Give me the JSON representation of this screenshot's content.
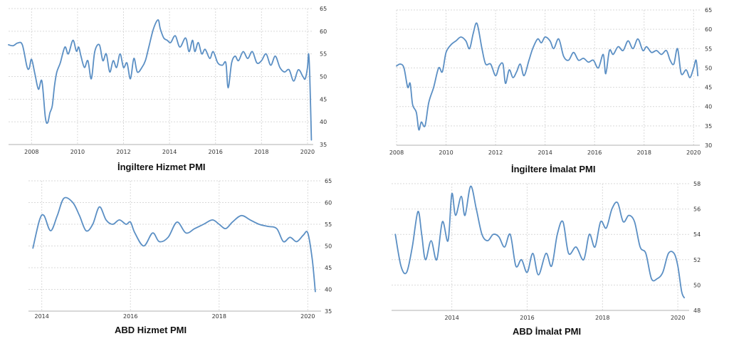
{
  "chart_data": [
    {
      "type": "line",
      "title": "İngiltere Hizmet PMI",
      "xlabel": "",
      "ylabel": "",
      "xlim": [
        2007,
        2020.25
      ],
      "ylim": [
        35,
        65
      ],
      "x_ticks": [
        "2008",
        "2010",
        "2012",
        "2014",
        "2016",
        "2018",
        "2020"
      ],
      "y_ticks": [
        "65",
        "60",
        "55",
        "50",
        "45",
        "40",
        "35"
      ],
      "grid": true,
      "color": "#5b8fc4",
      "series": [
        {
          "x": [
            2007.0,
            2007.2,
            2007.4,
            2007.6,
            2007.8,
            2007.9,
            2008.0,
            2008.15,
            2008.3,
            2008.45,
            2008.6,
            2008.7,
            2008.8,
            2008.9,
            2009.0,
            2009.1,
            2009.25,
            2009.45,
            2009.6,
            2009.8,
            2009.95,
            2010.05,
            2010.15,
            2010.3,
            2010.45,
            2010.6,
            2010.75,
            2010.95,
            2011.1,
            2011.25,
            2011.4,
            2011.55,
            2011.7,
            2011.85,
            2012.0,
            2012.15,
            2012.3,
            2012.45,
            2012.6,
            2012.8,
            2012.95,
            2013.1,
            2013.3,
            2013.5,
            2013.6,
            2013.75,
            2013.9,
            2014.05,
            2014.25,
            2014.45,
            2014.7,
            2014.85,
            2015.0,
            2015.1,
            2015.25,
            2015.4,
            2015.55,
            2015.75,
            2015.9,
            2016.1,
            2016.3,
            2016.45,
            2016.55,
            2016.7,
            2016.85,
            2017.0,
            2017.2,
            2017.4,
            2017.6,
            2017.8,
            2018.0,
            2018.2,
            2018.4,
            2018.6,
            2018.8,
            2019.0,
            2019.2,
            2019.4,
            2019.6,
            2019.8,
            2019.9,
            2020.0,
            2020.05,
            2020.1,
            2020.17
          ],
          "values": [
            57,
            56.8,
            57.4,
            57,
            52.2,
            51.8,
            53.8,
            50.5,
            47.2,
            49,
            41,
            39.8,
            42,
            43.5,
            48,
            51,
            53,
            56.5,
            55,
            58,
            55.6,
            56.5,
            54.5,
            52,
            53.5,
            49.5,
            55.5,
            57,
            53.5,
            55,
            51,
            53.5,
            52,
            55,
            52,
            53,
            49.5,
            54,
            51,
            52,
            53.5,
            56.5,
            60.5,
            62.5,
            60.5,
            58.5,
            58,
            57.5,
            59,
            56.5,
            58.5,
            55.5,
            58,
            55.5,
            57.5,
            55,
            56,
            54,
            55.5,
            53,
            52.5,
            53,
            47.5,
            53,
            54.5,
            53.5,
            55.5,
            54,
            55.5,
            53,
            53.5,
            55,
            52.5,
            54.5,
            52,
            51,
            51.5,
            49,
            51.5,
            50,
            49.5,
            52,
            55,
            50,
            36
          ]
        }
      ]
    },
    {
      "type": "line",
      "title": "İngiltere İmalat PMI",
      "xlabel": "",
      "ylabel": "",
      "xlim": [
        2008,
        2020.25
      ],
      "ylim": [
        30,
        65
      ],
      "x_ticks": [
        "2008",
        "2010",
        "2012",
        "2014",
        "2016",
        "2018",
        "2020"
      ],
      "y_ticks": [
        "65",
        "60",
        "55",
        "50",
        "45",
        "40",
        "35",
        "30"
      ],
      "grid": true,
      "color": "#5b8fc4",
      "series": [
        {
          "x": [
            2008.0,
            2008.15,
            2008.3,
            2008.45,
            2008.55,
            2008.65,
            2008.8,
            2008.9,
            2009.0,
            2009.15,
            2009.3,
            2009.5,
            2009.7,
            2009.85,
            2010.0,
            2010.2,
            2010.4,
            2010.6,
            2010.8,
            2010.95,
            2011.1,
            2011.25,
            2011.45,
            2011.6,
            2011.8,
            2012.0,
            2012.15,
            2012.3,
            2012.4,
            2012.55,
            2012.7,
            2012.85,
            2013.0,
            2013.15,
            2013.35,
            2013.5,
            2013.7,
            2013.85,
            2014.0,
            2014.2,
            2014.35,
            2014.55,
            2014.75,
            2014.95,
            2015.15,
            2015.35,
            2015.55,
            2015.75,
            2015.95,
            2016.15,
            2016.35,
            2016.45,
            2016.6,
            2016.75,
            2016.95,
            2017.15,
            2017.35,
            2017.55,
            2017.75,
            2017.95,
            2018.1,
            2018.3,
            2018.5,
            2018.7,
            2018.9,
            2019.05,
            2019.2,
            2019.35,
            2019.5,
            2019.7,
            2019.85,
            2020.0,
            2020.1,
            2020.17
          ],
          "values": [
            50.5,
            51,
            50,
            45,
            46,
            40.5,
            38.5,
            34,
            36,
            35,
            41,
            45,
            50,
            49,
            54,
            56,
            57,
            58,
            57,
            55,
            59,
            61.5,
            55,
            51,
            51,
            48,
            50.5,
            51,
            46,
            49.5,
            47.5,
            49,
            51,
            48,
            52,
            55,
            57.5,
            56.5,
            58,
            57,
            55,
            57.5,
            53,
            52,
            54,
            52,
            52.5,
            51.5,
            52,
            50,
            53.5,
            48.5,
            54.5,
            53.5,
            55.5,
            54.5,
            57,
            55,
            57.5,
            54.5,
            55.5,
            54,
            54.5,
            53.5,
            54.5,
            52,
            51,
            55,
            48.5,
            49.5,
            47.5,
            50,
            52,
            48
          ]
        }
      ]
    },
    {
      "type": "line",
      "title": "ABD Hizmet PMI",
      "xlabel": "",
      "ylabel": "",
      "xlim": [
        2013.7,
        2020.3
      ],
      "ylim": [
        35,
        65
      ],
      "x_ticks": [
        "2014",
        "2016",
        "2018",
        "2020"
      ],
      "y_ticks": [
        "65",
        "60",
        "55",
        "50",
        "45",
        "40",
        "35"
      ],
      "grid": true,
      "color": "#5b8fc4",
      "series": [
        {
          "x": [
            2013.8,
            2013.95,
            2014.05,
            2014.2,
            2014.35,
            2014.5,
            2014.7,
            2014.85,
            2015.0,
            2015.15,
            2015.3,
            2015.45,
            2015.6,
            2015.75,
            2015.9,
            2016.0,
            2016.1,
            2016.3,
            2016.5,
            2016.65,
            2016.85,
            2017.05,
            2017.25,
            2017.45,
            2017.65,
            2017.85,
            2018.0,
            2018.15,
            2018.3,
            2018.5,
            2018.7,
            2018.9,
            2019.1,
            2019.3,
            2019.45,
            2019.6,
            2019.75,
            2019.9,
            2020.0,
            2020.1,
            2020.17
          ],
          "values": [
            49.5,
            56,
            57,
            53.5,
            57,
            61,
            60,
            57,
            53.5,
            55,
            59,
            56,
            55,
            56,
            55,
            55.5,
            53,
            50,
            53,
            51,
            52,
            55.5,
            53,
            54,
            55,
            56,
            55,
            54,
            55.5,
            57,
            56,
            55,
            54.5,
            54,
            51,
            52,
            51,
            52.5,
            53,
            47,
            39.5
          ]
        }
      ]
    },
    {
      "type": "line",
      "title": "ABD İmalat PMI",
      "xlabel": "",
      "ylabel": "",
      "xlim": [
        2012.4,
        2020.3
      ],
      "ylim": [
        48,
        58
      ],
      "x_ticks": [
        "2014",
        "2016",
        "2018",
        "2020"
      ],
      "y_ticks": [
        "58",
        "56",
        "54",
        "52",
        "50",
        "48"
      ],
      "grid": true,
      "color": "#5b8fc4",
      "series": [
        {
          "x": [
            2012.5,
            2012.65,
            2012.8,
            2012.95,
            2013.1,
            2013.2,
            2013.3,
            2013.45,
            2013.6,
            2013.75,
            2013.9,
            2014.0,
            2014.1,
            2014.25,
            2014.35,
            2014.5,
            2014.65,
            2014.8,
            2014.95,
            2015.1,
            2015.25,
            2015.4,
            2015.55,
            2015.7,
            2015.85,
            2016.0,
            2016.15,
            2016.3,
            2016.5,
            2016.65,
            2016.8,
            2016.95,
            2017.1,
            2017.3,
            2017.5,
            2017.65,
            2017.8,
            2017.95,
            2018.1,
            2018.25,
            2018.4,
            2018.55,
            2018.7,
            2018.85,
            2019.0,
            2019.15,
            2019.3,
            2019.45,
            2019.6,
            2019.75,
            2019.9,
            2020.0,
            2020.1,
            2020.17
          ],
          "values": [
            54,
            51.5,
            51,
            53,
            55.8,
            54,
            52,
            53.5,
            52,
            55,
            53.5,
            57.2,
            55.5,
            57,
            55.5,
            57.8,
            56,
            54,
            53.5,
            54,
            53.8,
            53,
            54,
            51.5,
            52,
            51,
            52.5,
            50.8,
            52.5,
            51.5,
            54,
            55,
            52.5,
            53,
            52,
            54,
            53,
            55,
            54.5,
            56,
            56.5,
            55,
            55.5,
            55,
            53,
            52.5,
            50.5,
            50.5,
            51,
            52.5,
            52.5,
            51.5,
            49.5,
            49
          ]
        }
      ]
    }
  ]
}
